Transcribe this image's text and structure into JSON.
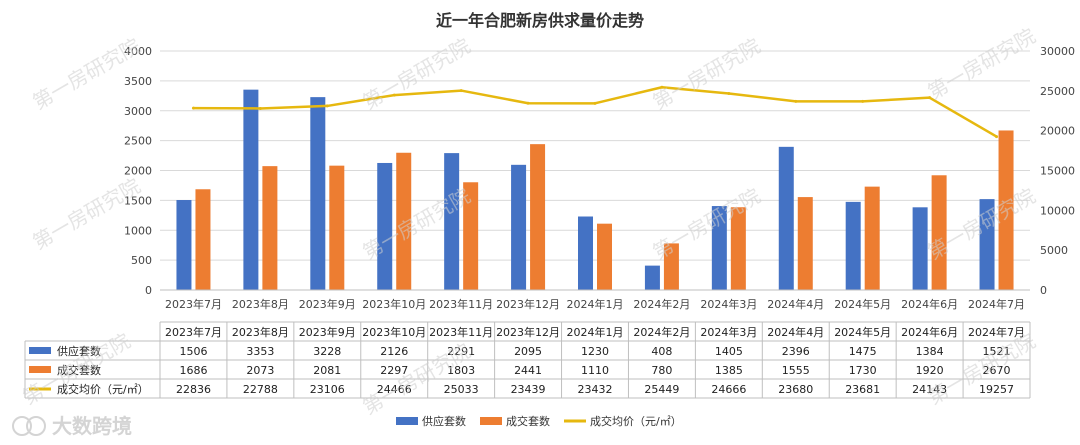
{
  "watermarks": [
    "第一房研究院"
  ],
  "brand_logo": "大数跨境",
  "chart_data": {
    "type": "bar",
    "title": "近一年合肥新房供求量价走势",
    "categories": [
      "2023年7月",
      "2023年8月",
      "2023年9月",
      "2023年10月",
      "2023年11月",
      "2023年12月",
      "2024年1月",
      "2024年2月",
      "2024年3月",
      "2024年4月",
      "2024年5月",
      "2024年6月",
      "2024年7月"
    ],
    "series": [
      {
        "name": "供应套数",
        "type": "bar",
        "axis": "left",
        "color": "#4472C4",
        "values": [
          1506,
          3353,
          3228,
          2126,
          2291,
          2095,
          1230,
          408,
          1405,
          2396,
          1475,
          1384,
          1521
        ]
      },
      {
        "name": "成交套数",
        "type": "bar",
        "axis": "left",
        "color": "#ED7D31",
        "values": [
          1686,
          2073,
          2081,
          2297,
          1803,
          2441,
          1110,
          780,
          1385,
          1555,
          1730,
          1920,
          2670
        ]
      },
      {
        "name": "成交均价（元/㎡）",
        "type": "line",
        "axis": "right",
        "color": "#E6B80F",
        "values": [
          22836,
          22788,
          23106,
          24466,
          25033,
          23439,
          23432,
          25449,
          24666,
          23680,
          23681,
          24143,
          19257
        ]
      }
    ],
    "table_values": [
      [
        "1506",
        "3353",
        "3228",
        "2126",
        "2291",
        "2095",
        "1230",
        "408",
        "1405",
        "2396",
        "1475",
        "1384",
        "1521"
      ],
      [
        "1686",
        "2073",
        "2081",
        "2297",
        "1803",
        "2441",
        "1110",
        "780",
        "1385",
        "1555",
        "1730",
        "1920",
        "2670"
      ],
      [
        "22836",
        "22788",
        "23106",
        "24466",
        "25033",
        "23439",
        "23432",
        "25449",
        "24666",
        "23680",
        "23681",
        "24143",
        "19257"
      ]
    ],
    "y_left": {
      "min": 0,
      "max": 4000,
      "ticks": [
        0,
        500,
        1000,
        1500,
        2000,
        2500,
        3000,
        3500,
        4000
      ]
    },
    "y_right": {
      "min": 0,
      "max": 30000,
      "ticks": [
        0,
        5000,
        10000,
        15000,
        20000,
        25000,
        30000
      ]
    },
    "legend_position": "bottom",
    "legend": [
      "供应套数",
      "成交套数",
      "成交均价（元/㎡）"
    ],
    "grid": true,
    "data_table": true
  }
}
